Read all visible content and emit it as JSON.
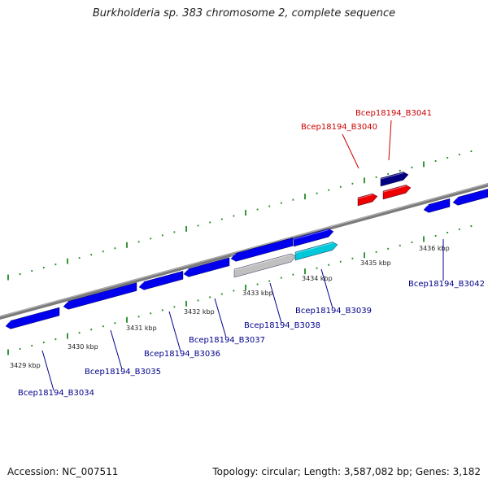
{
  "title": "Burkholderia sp. 383 chromosome 2, complete sequence",
  "footer": {
    "accession": "Accession: NC_007511",
    "topology": "Topology: circular; Length: 3,587,082 bp; Genes: 3,182"
  },
  "colors": {
    "gene_default": "#0000ee",
    "gene_highlight": "#ee0000",
    "gene_dark": "#000080",
    "gene_cyan": "#00c8d8",
    "gene_gray": "#c0c0c0",
    "axis": "#808080",
    "tick": "#228b22",
    "label_default": "#00008b",
    "label_highlight": "#cc0000"
  },
  "scale_labels": [
    "3429 kbp",
    "3430 kbp",
    "3431 kbp",
    "3432 kbp",
    "3433 kbp",
    "3434 kbp",
    "3435 kbp",
    "3436 kbp"
  ],
  "gene_labels": [
    {
      "name": "Bcep18194_B3034",
      "color": "blue"
    },
    {
      "name": "Bcep18194_B3035",
      "color": "blue"
    },
    {
      "name": "Bcep18194_B3036",
      "color": "blue"
    },
    {
      "name": "Bcep18194_B3037",
      "color": "blue"
    },
    {
      "name": "Bcep18194_B3038",
      "color": "blue"
    },
    {
      "name": "Bcep18194_B3039",
      "color": "blue"
    },
    {
      "name": "Bcep18194_B3040",
      "color": "red"
    },
    {
      "name": "Bcep18194_B3041",
      "color": "red"
    },
    {
      "name": "Bcep18194_B3042",
      "color": "blue"
    }
  ]
}
